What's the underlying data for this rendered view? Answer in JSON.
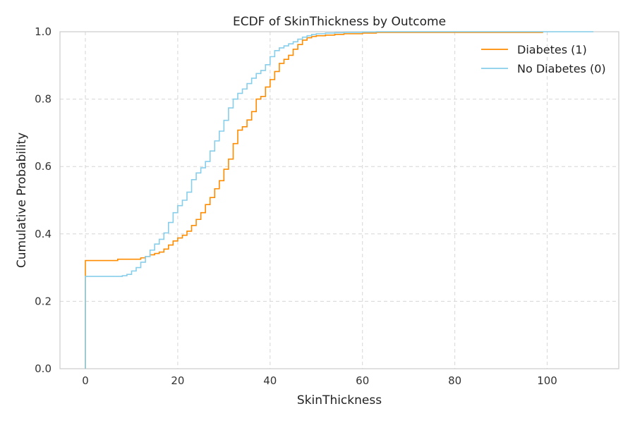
{
  "chart_data": {
    "type": "line",
    "title": "ECDF of SkinThickness by Outcome",
    "xlabel": "SkinThickness",
    "ylabel": "Cumulative Probability",
    "xlim": [
      -5.5,
      115.5
    ],
    "ylim": [
      0.0,
      1.0
    ],
    "xticks": [
      0,
      20,
      40,
      60,
      80,
      100
    ],
    "yticks": [
      0.0,
      0.2,
      0.4,
      0.6,
      0.8,
      1.0
    ],
    "xtick_labels": [
      "0",
      "20",
      "40",
      "60",
      "80",
      "100"
    ],
    "ytick_labels": [
      "0.0",
      "0.2",
      "0.4",
      "0.6",
      "0.8",
      "1.0"
    ],
    "grid": true,
    "legend_position": "top-right",
    "series": [
      {
        "name": "Diabetes (1)",
        "color": "#ff8c00",
        "x": [
          0,
          7,
          12,
          13,
          14,
          15,
          16,
          17,
          18,
          19,
          20,
          21,
          22,
          23,
          24,
          25,
          26,
          27,
          28,
          29,
          30,
          31,
          32,
          33,
          34,
          35,
          36,
          37,
          38,
          39,
          40,
          41,
          42,
          43,
          44,
          45,
          46,
          47,
          48,
          49,
          50,
          52,
          54,
          56,
          60,
          63,
          99
        ],
        "y": [
          0.321,
          0.325,
          0.329,
          0.333,
          0.338,
          0.342,
          0.346,
          0.355,
          0.367,
          0.379,
          0.388,
          0.396,
          0.408,
          0.425,
          0.443,
          0.463,
          0.487,
          0.508,
          0.534,
          0.558,
          0.592,
          0.622,
          0.668,
          0.708,
          0.718,
          0.738,
          0.763,
          0.8,
          0.808,
          0.836,
          0.858,
          0.882,
          0.906,
          0.918,
          0.93,
          0.948,
          0.962,
          0.975,
          0.982,
          0.986,
          0.988,
          0.99,
          0.992,
          0.994,
          0.996,
          0.998,
          1.0
        ]
      },
      {
        "name": "No Diabetes (0)",
        "color": "#87ceeb",
        "x": [
          0,
          8,
          9,
          10,
          11,
          12,
          13,
          14,
          15,
          16,
          17,
          18,
          19,
          20,
          21,
          22,
          23,
          24,
          25,
          26,
          27,
          28,
          29,
          30,
          31,
          32,
          33,
          34,
          35,
          36,
          37,
          38,
          39,
          40,
          41,
          42,
          43,
          44,
          45,
          46,
          47,
          48,
          49,
          50,
          52,
          54,
          56,
          60,
          63,
          110
        ],
        "y": [
          0.274,
          0.276,
          0.28,
          0.29,
          0.3,
          0.316,
          0.333,
          0.352,
          0.37,
          0.384,
          0.403,
          0.434,
          0.463,
          0.484,
          0.5,
          0.524,
          0.561,
          0.581,
          0.596,
          0.615,
          0.646,
          0.676,
          0.705,
          0.737,
          0.774,
          0.8,
          0.817,
          0.83,
          0.846,
          0.862,
          0.876,
          0.885,
          0.902,
          0.926,
          0.944,
          0.952,
          0.958,
          0.964,
          0.97,
          0.978,
          0.984,
          0.988,
          0.992,
          0.994,
          0.996,
          0.997,
          0.998,
          0.999,
          1.0,
          1.0
        ]
      }
    ]
  }
}
